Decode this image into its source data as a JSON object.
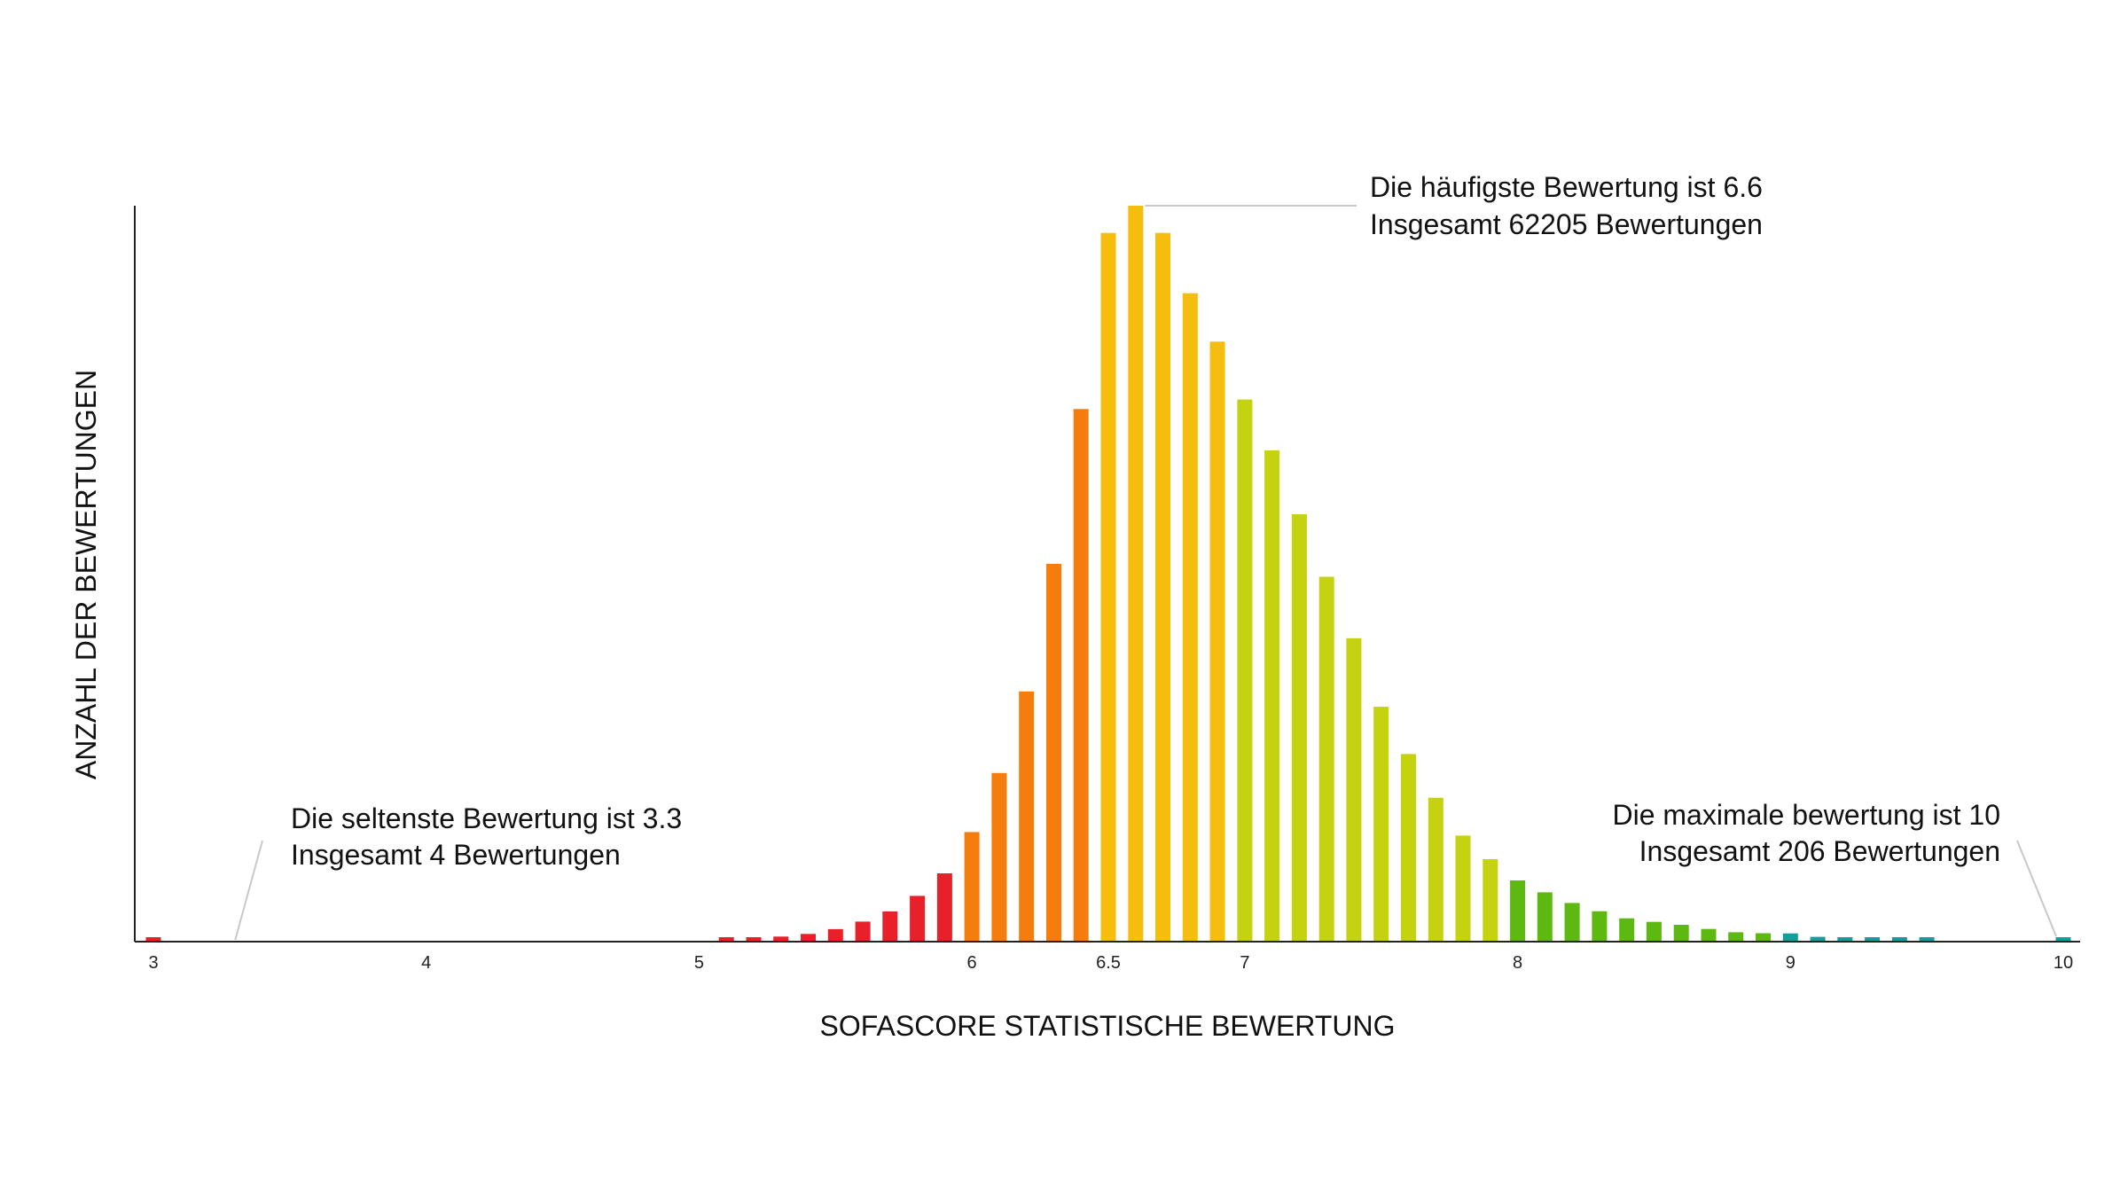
{
  "chart_data": {
    "type": "bar",
    "xlabel": "SOFASCORE STATISTISCHE BEWERTUNG",
    "ylabel": "ANZAHL DER BEWERTUNGEN",
    "xlim": [
      3,
      10
    ],
    "ylim": [
      0,
      62205
    ],
    "xticks": [
      {
        "value": 3,
        "label": "3"
      },
      {
        "value": 4,
        "label": "4"
      },
      {
        "value": 5,
        "label": "5"
      },
      {
        "value": 6,
        "label": "6"
      },
      {
        "value": 6.5,
        "label": "6.5"
      },
      {
        "value": 7,
        "label": "7"
      },
      {
        "value": 8,
        "label": "8"
      },
      {
        "value": 9,
        "label": "9"
      },
      {
        "value": 10,
        "label": "10"
      }
    ],
    "grid": false,
    "bars": [
      {
        "x": 3.0,
        "y": 150,
        "color": "#e8202a"
      },
      {
        "x": 5.1,
        "y": 230,
        "color": "#e8202a"
      },
      {
        "x": 5.2,
        "y": 260,
        "color": "#e8202a"
      },
      {
        "x": 5.3,
        "y": 350,
        "color": "#e8202a"
      },
      {
        "x": 5.4,
        "y": 580,
        "color": "#e8202a"
      },
      {
        "x": 5.5,
        "y": 980,
        "color": "#e8202a"
      },
      {
        "x": 5.6,
        "y": 1620,
        "color": "#e8202a"
      },
      {
        "x": 5.7,
        "y": 2480,
        "color": "#e8202a"
      },
      {
        "x": 5.8,
        "y": 3800,
        "color": "#e8202a"
      },
      {
        "x": 5.9,
        "y": 5700,
        "color": "#e8202a"
      },
      {
        "x": 6.0,
        "y": 9200,
        "color": "#f57d0e"
      },
      {
        "x": 6.1,
        "y": 14200,
        "color": "#f57d0e"
      },
      {
        "x": 6.2,
        "y": 21100,
        "color": "#f57d0e"
      },
      {
        "x": 6.3,
        "y": 31900,
        "color": "#f57d0e"
      },
      {
        "x": 6.4,
        "y": 45000,
        "color": "#f57d0e"
      },
      {
        "x": 6.5,
        "y": 59900,
        "color": "#f5be0f"
      },
      {
        "x": 6.6,
        "y": 62205,
        "color": "#f5be0f"
      },
      {
        "x": 6.7,
        "y": 59900,
        "color": "#f5be0f"
      },
      {
        "x": 6.8,
        "y": 54800,
        "color": "#f5be0f"
      },
      {
        "x": 6.9,
        "y": 50700,
        "color": "#f5be0f"
      },
      {
        "x": 7.0,
        "y": 45800,
        "color": "#c5d20f"
      },
      {
        "x": 7.1,
        "y": 41500,
        "color": "#c5d20f"
      },
      {
        "x": 7.2,
        "y": 36100,
        "color": "#c5d20f"
      },
      {
        "x": 7.3,
        "y": 30800,
        "color": "#c5d20f"
      },
      {
        "x": 7.4,
        "y": 25600,
        "color": "#c5d20f"
      },
      {
        "x": 7.5,
        "y": 19800,
        "color": "#c5d20f"
      },
      {
        "x": 7.6,
        "y": 15800,
        "color": "#c5d20f"
      },
      {
        "x": 7.7,
        "y": 12100,
        "color": "#c5d20f"
      },
      {
        "x": 7.8,
        "y": 8900,
        "color": "#c5d20f"
      },
      {
        "x": 7.9,
        "y": 6900,
        "color": "#c5d20f"
      },
      {
        "x": 8.0,
        "y": 5100,
        "color": "#5db812"
      },
      {
        "x": 8.1,
        "y": 4100,
        "color": "#5db812"
      },
      {
        "x": 8.2,
        "y": 3200,
        "color": "#5db812"
      },
      {
        "x": 8.3,
        "y": 2500,
        "color": "#5db812"
      },
      {
        "x": 8.4,
        "y": 1900,
        "color": "#5db812"
      },
      {
        "x": 8.5,
        "y": 1600,
        "color": "#5db812"
      },
      {
        "x": 8.6,
        "y": 1350,
        "color": "#5db812"
      },
      {
        "x": 8.7,
        "y": 1000,
        "color": "#5db812"
      },
      {
        "x": 8.8,
        "y": 720,
        "color": "#5db812"
      },
      {
        "x": 8.9,
        "y": 640,
        "color": "#5db812"
      },
      {
        "x": 9.0,
        "y": 620,
        "color": "#129e9a"
      },
      {
        "x": 9.1,
        "y": 330,
        "color": "#129e9a"
      },
      {
        "x": 9.2,
        "y": 300,
        "color": "#129e9a"
      },
      {
        "x": 9.3,
        "y": 280,
        "color": "#129e9a"
      },
      {
        "x": 9.4,
        "y": 260,
        "color": "#129e9a"
      },
      {
        "x": 9.5,
        "y": 270,
        "color": "#129e9a"
      },
      {
        "x": 10.0,
        "y": 206,
        "color": "#129e9a"
      }
    ],
    "annotations": {
      "most_frequent": {
        "x": 6.6,
        "line1": "Die häufigste Bewertung ist 6.6",
        "line2": "Insgesamt 62205 Bewertungen"
      },
      "rarest": {
        "x": 3.3,
        "line1": "Die seltenste Bewertung ist 3.3",
        "line2": "Insgesamt 4 Bewertungen"
      },
      "maximum": {
        "x": 10,
        "line1": "Die maximale bewertung ist 10",
        "line2": "Insgesamt 206 Bewertungen"
      }
    }
  }
}
